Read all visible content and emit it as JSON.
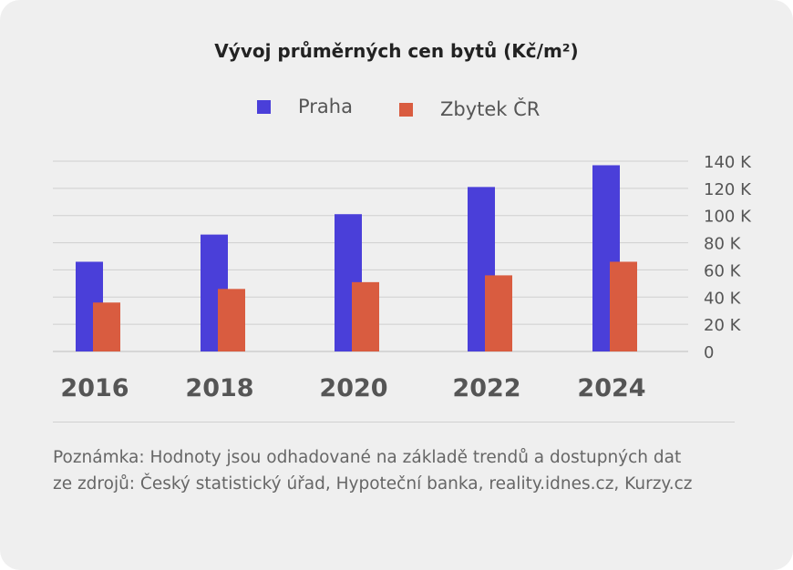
{
  "chart_data": {
    "type": "bar",
    "title": "Vývoj průměrných cen bytů  (Kč/m²)",
    "categories": [
      "2016",
      "2018",
      "2020",
      "2022",
      "2024"
    ],
    "series": [
      {
        "name": "Praha",
        "color": "#4a3fd9",
        "values": [
          66000,
          86000,
          101000,
          121000,
          137000
        ]
      },
      {
        "name": "Zbytek ČR",
        "color": "#d95c40",
        "values": [
          36000,
          46000,
          51000,
          56000,
          66000
        ]
      }
    ],
    "y_ticks": [
      "0",
      "20 K",
      "40 K",
      "60 K",
      "80 K",
      "100 K",
      "120 K",
      "140 K"
    ],
    "ylim": [
      0,
      140000
    ],
    "y_axis_side": "right",
    "grid": true,
    "legend_position": "top-center"
  },
  "note": {
    "line1": "Poznámka: Hodnoty jsou odhadované na základě trendů a dostupných dat",
    "line2": "ze zdrojů: Český statistický úřad, Hypoteční banka, reality.idnes.cz, Kurzy.cz"
  }
}
